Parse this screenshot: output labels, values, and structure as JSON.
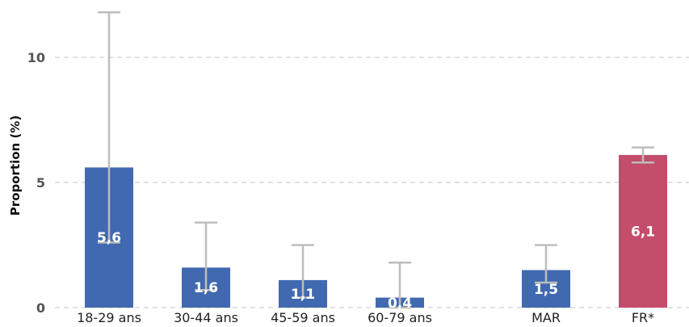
{
  "chart_data": {
    "type": "bar",
    "ylabel": "Proportion (%)",
    "ylim": [
      0,
      11.9
    ],
    "yticks": [
      0,
      5,
      10
    ],
    "grid": true,
    "categories": [
      "18-29 ans",
      "30-44 ans",
      "45-59 ans",
      "60-79 ans",
      "MAR",
      "FR*"
    ],
    "values": [
      5.6,
      1.6,
      1.1,
      0.4,
      1.5,
      6.1
    ],
    "value_labels": [
      "5,6",
      "1,6",
      "1,1",
      "0,4",
      "1,5",
      "6,1"
    ],
    "error_low": [
      2.6,
      0.7,
      0.4,
      0.0,
      1.0,
      5.8
    ],
    "error_high": [
      11.8,
      3.4,
      2.5,
      1.8,
      2.5,
      6.4
    ],
    "colors": [
      "#4169b0",
      "#4169b0",
      "#4169b0",
      "#4169b0",
      "#4169b0",
      "#c44d6c"
    ],
    "errorbar_color": "#bdbdbd"
  }
}
